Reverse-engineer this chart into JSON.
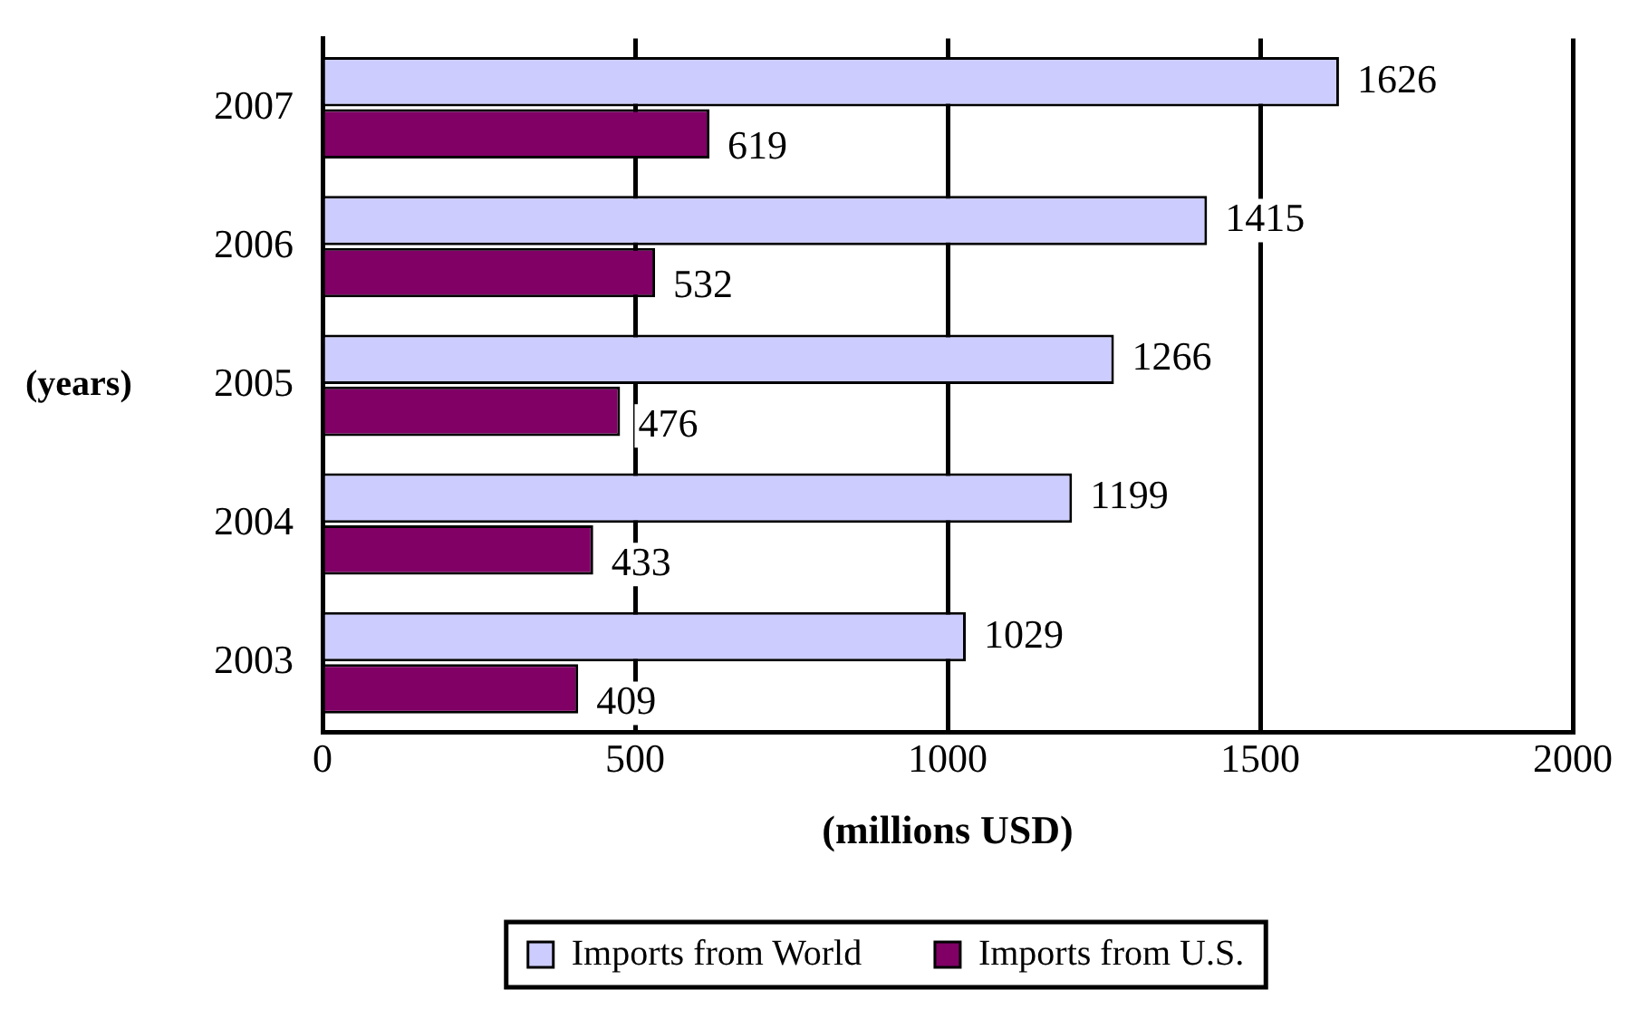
{
  "chart_data": {
    "type": "bar",
    "orientation": "horizontal",
    "xlabel": "(millions USD)",
    "ylabel": "(years)",
    "categories": [
      "2007",
      "2006",
      "2005",
      "2004",
      "2003"
    ],
    "series": [
      {
        "name": "Imports from World",
        "color": "#ccccff",
        "values": [
          1626,
          1415,
          1266,
          1199,
          1029
        ]
      },
      {
        "name": "Imports from U.S.",
        "color": "#800066",
        "values": [
          619,
          532,
          476,
          433,
          409
        ]
      }
    ],
    "xlim": [
      0,
      2000
    ],
    "xticks": [
      0,
      500,
      1000,
      1500,
      2000
    ],
    "grid": "x",
    "legend": "bottom",
    "data_labels": true
  }
}
